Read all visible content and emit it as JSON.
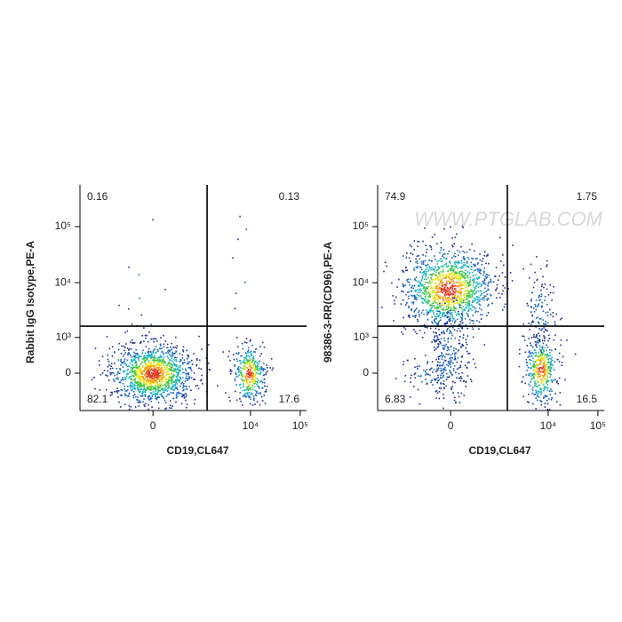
{
  "chart_data": [
    {
      "type": "flow-quadrant",
      "scale": "biexponential",
      "xlabel": "CD19,CL647",
      "ylabel": "Rabbit IgG Isotype,PE-A",
      "xlim": [
        -3200,
        134000
      ],
      "ylim": [
        -1070,
        557000
      ],
      "xticks": [
        0,
        {
          "value": 10000,
          "label": "10⁴"
        },
        {
          "value": 100000,
          "label": "10⁵"
        }
      ],
      "yticks": [
        0,
        {
          "value": 1000,
          "label": "10³"
        },
        {
          "value": 10000,
          "label": "10⁴"
        },
        {
          "value": 100000,
          "label": "10⁵"
        }
      ],
      "gate": {
        "x": 1330,
        "y": 1640
      },
      "quadrants": {
        "upper_left": 0.16,
        "upper_right": 0.13,
        "lower_left": 82.1,
        "lower_right": 17.6
      }
    },
    {
      "type": "flow-quadrant",
      "scale": "biexponential",
      "xlabel": "CD19,CL647",
      "ylabel": "98386-3-RR(CD96),PE-A",
      "xlim": [
        -3200,
        134000
      ],
      "ylim": [
        -1070,
        557000
      ],
      "xticks": [
        0,
        {
          "value": 10000,
          "label": "10⁴"
        },
        {
          "value": 100000,
          "label": "10⁵"
        }
      ],
      "yticks": [
        0,
        {
          "value": 1000,
          "label": "10³"
        },
        {
          "value": 10000,
          "label": "10⁴"
        },
        {
          "value": 100000,
          "label": "10⁵"
        }
      ],
      "gate": {
        "x": 1500,
        "y": 1640
      },
      "quadrants": {
        "upper_left": 74.9,
        "upper_right": 1.75,
        "lower_left": 6.83,
        "lower_right": 16.5
      },
      "watermark": "WWW.PTGLAB.COM"
    }
  ]
}
